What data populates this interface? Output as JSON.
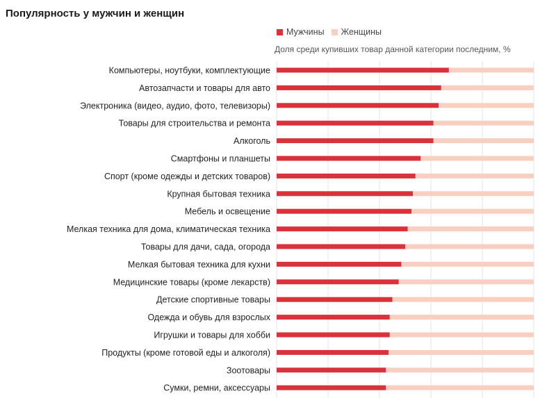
{
  "chart_data": {
    "type": "bar",
    "orientation": "horizontal",
    "stacked": true,
    "title": "Популярность у мужчин и женщин",
    "xlabel": "Доля среди купивших товар данной категории последним, %",
    "xlim": [
      0,
      100
    ],
    "grid": true,
    "legend_position": "top",
    "categories": [
      "Компьютеры, ноутбуки, комплектующие",
      "Автозапчасти и товары для авто",
      "Электроника (видео, аудио, фото, телевизоры)",
      "Товары для строительства и ремонта",
      "Алкоголь",
      "Смартфоны и планшеты",
      "Спорт (кроме одежды и детских товаров)",
      "Крупная бытовая техника",
      "Мебель и освещение",
      "Мелкая техника для дома, климатическая техника",
      "Товары для дачи, сада, огорода",
      "Мелкая бытовая техника для кухни",
      "Медицинские товары (кроме лекарств)",
      "Детские спортивные товары",
      "Одежда и обувь для взрослых",
      "Игрушки и товары для хобби",
      "Продукты (кроме готовой еды и алкоголя)",
      "Зоотовары",
      "Сумки, ремни, аксессуары"
    ],
    "series": [
      {
        "name": "Мужчины",
        "color": "#d9323a",
        "values": [
          67,
          64,
          63,
          61,
          61,
          56,
          54,
          53,
          52.5,
          51,
          50,
          48.5,
          47.5,
          45,
          44,
          44,
          43.5,
          42.5,
          42.5
        ]
      },
      {
        "name": "Женщины",
        "color": "#f9cfc2",
        "values": [
          33,
          36,
          37,
          39,
          39,
          44,
          46,
          47,
          47.5,
          49,
          50,
          51.5,
          52.5,
          55,
          56,
          56,
          56.5,
          57.5,
          57.5
        ]
      }
    ]
  }
}
